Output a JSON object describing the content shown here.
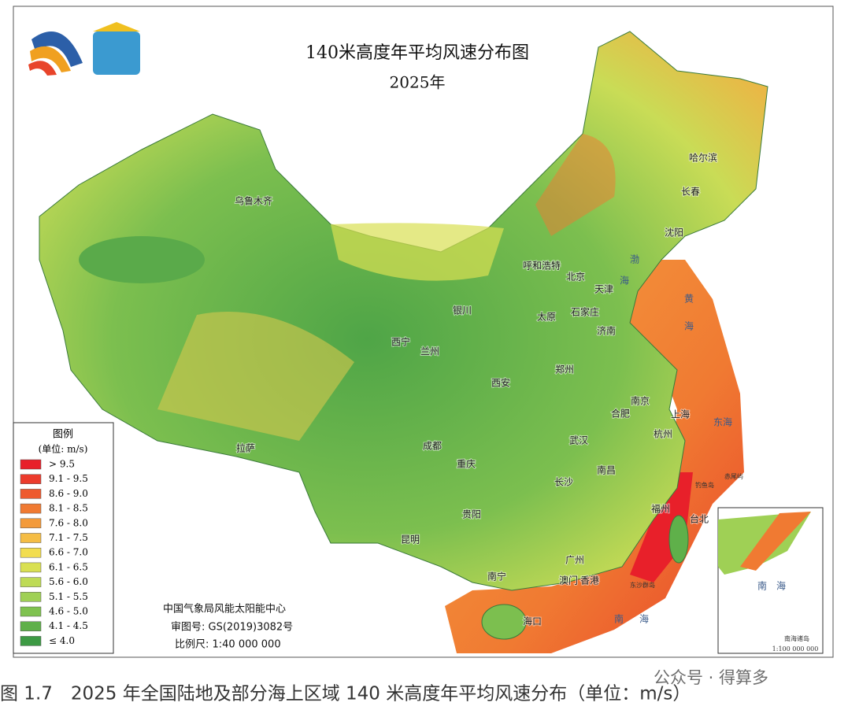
{
  "title": "140米高度年平均风速分布图",
  "subtitle": "2025年",
  "legend": {
    "title": "图例",
    "unit": "(单位: m/s)",
    "items": [
      {
        "label": "> 9.5",
        "color": "#e8202a"
      },
      {
        "label": "9.1 - 9.5",
        "color": "#ec3b2c"
      },
      {
        "label": "8.6 - 9.0",
        "color": "#ee5a2f"
      },
      {
        "label": "8.1 - 8.5",
        "color": "#f07a32"
      },
      {
        "label": "7.6 - 8.0",
        "color": "#f39a3a"
      },
      {
        "label": "7.1 - 7.5",
        "color": "#f5bd45"
      },
      {
        "label": "6.6 - 7.0",
        "color": "#f2dd50"
      },
      {
        "label": "6.1 - 6.5",
        "color": "#d9e052"
      },
      {
        "label": "5.6 - 6.0",
        "color": "#bedb55"
      },
      {
        "label": "5.1 - 5.5",
        "color": "#9fd055"
      },
      {
        "label": "4.6 - 5.0",
        "color": "#7fc24f"
      },
      {
        "label": "4.1 - 4.5",
        "color": "#5fb04a"
      },
      {
        "label": "≤ 4.0",
        "color": "#3d9a44"
      }
    ]
  },
  "cities": [
    "乌鲁木齐",
    "拉萨",
    "西宁",
    "兰州",
    "银川",
    "呼和浩特",
    "北京",
    "天津",
    "石家庄",
    "太原",
    "济南",
    "郑州",
    "西安",
    "南京",
    "合肥",
    "上海",
    "杭州",
    "成都",
    "重庆",
    "武汉",
    "长沙",
    "南昌",
    "贵阳",
    "昆明",
    "南宁",
    "广州",
    "澳门",
    "香港",
    "福州",
    "台北",
    "海口",
    "哈尔滨",
    "长春",
    "沈阳"
  ],
  "seas": [
    "渤",
    "海",
    "黄",
    "海",
    "东海",
    "南",
    "海"
  ],
  "islands": [
    "钓鱼岛",
    "赤尾屿",
    "东沙群岛"
  ],
  "inset": {
    "sea": "南　海",
    "label": "南海诸岛",
    "scale": "1:100 000 000"
  },
  "source": {
    "org": "中国气象局风能太阳能中心",
    "approval": "审图号: GS(2019)3082号",
    "scale": "比例尺: 1:40 000 000"
  },
  "caption": "图 1.7　2025 年全国陆地及部分海上区域 140 米高度年平均风速分布（单位：m/s）",
  "watermark": "公众号 · 得算多"
}
